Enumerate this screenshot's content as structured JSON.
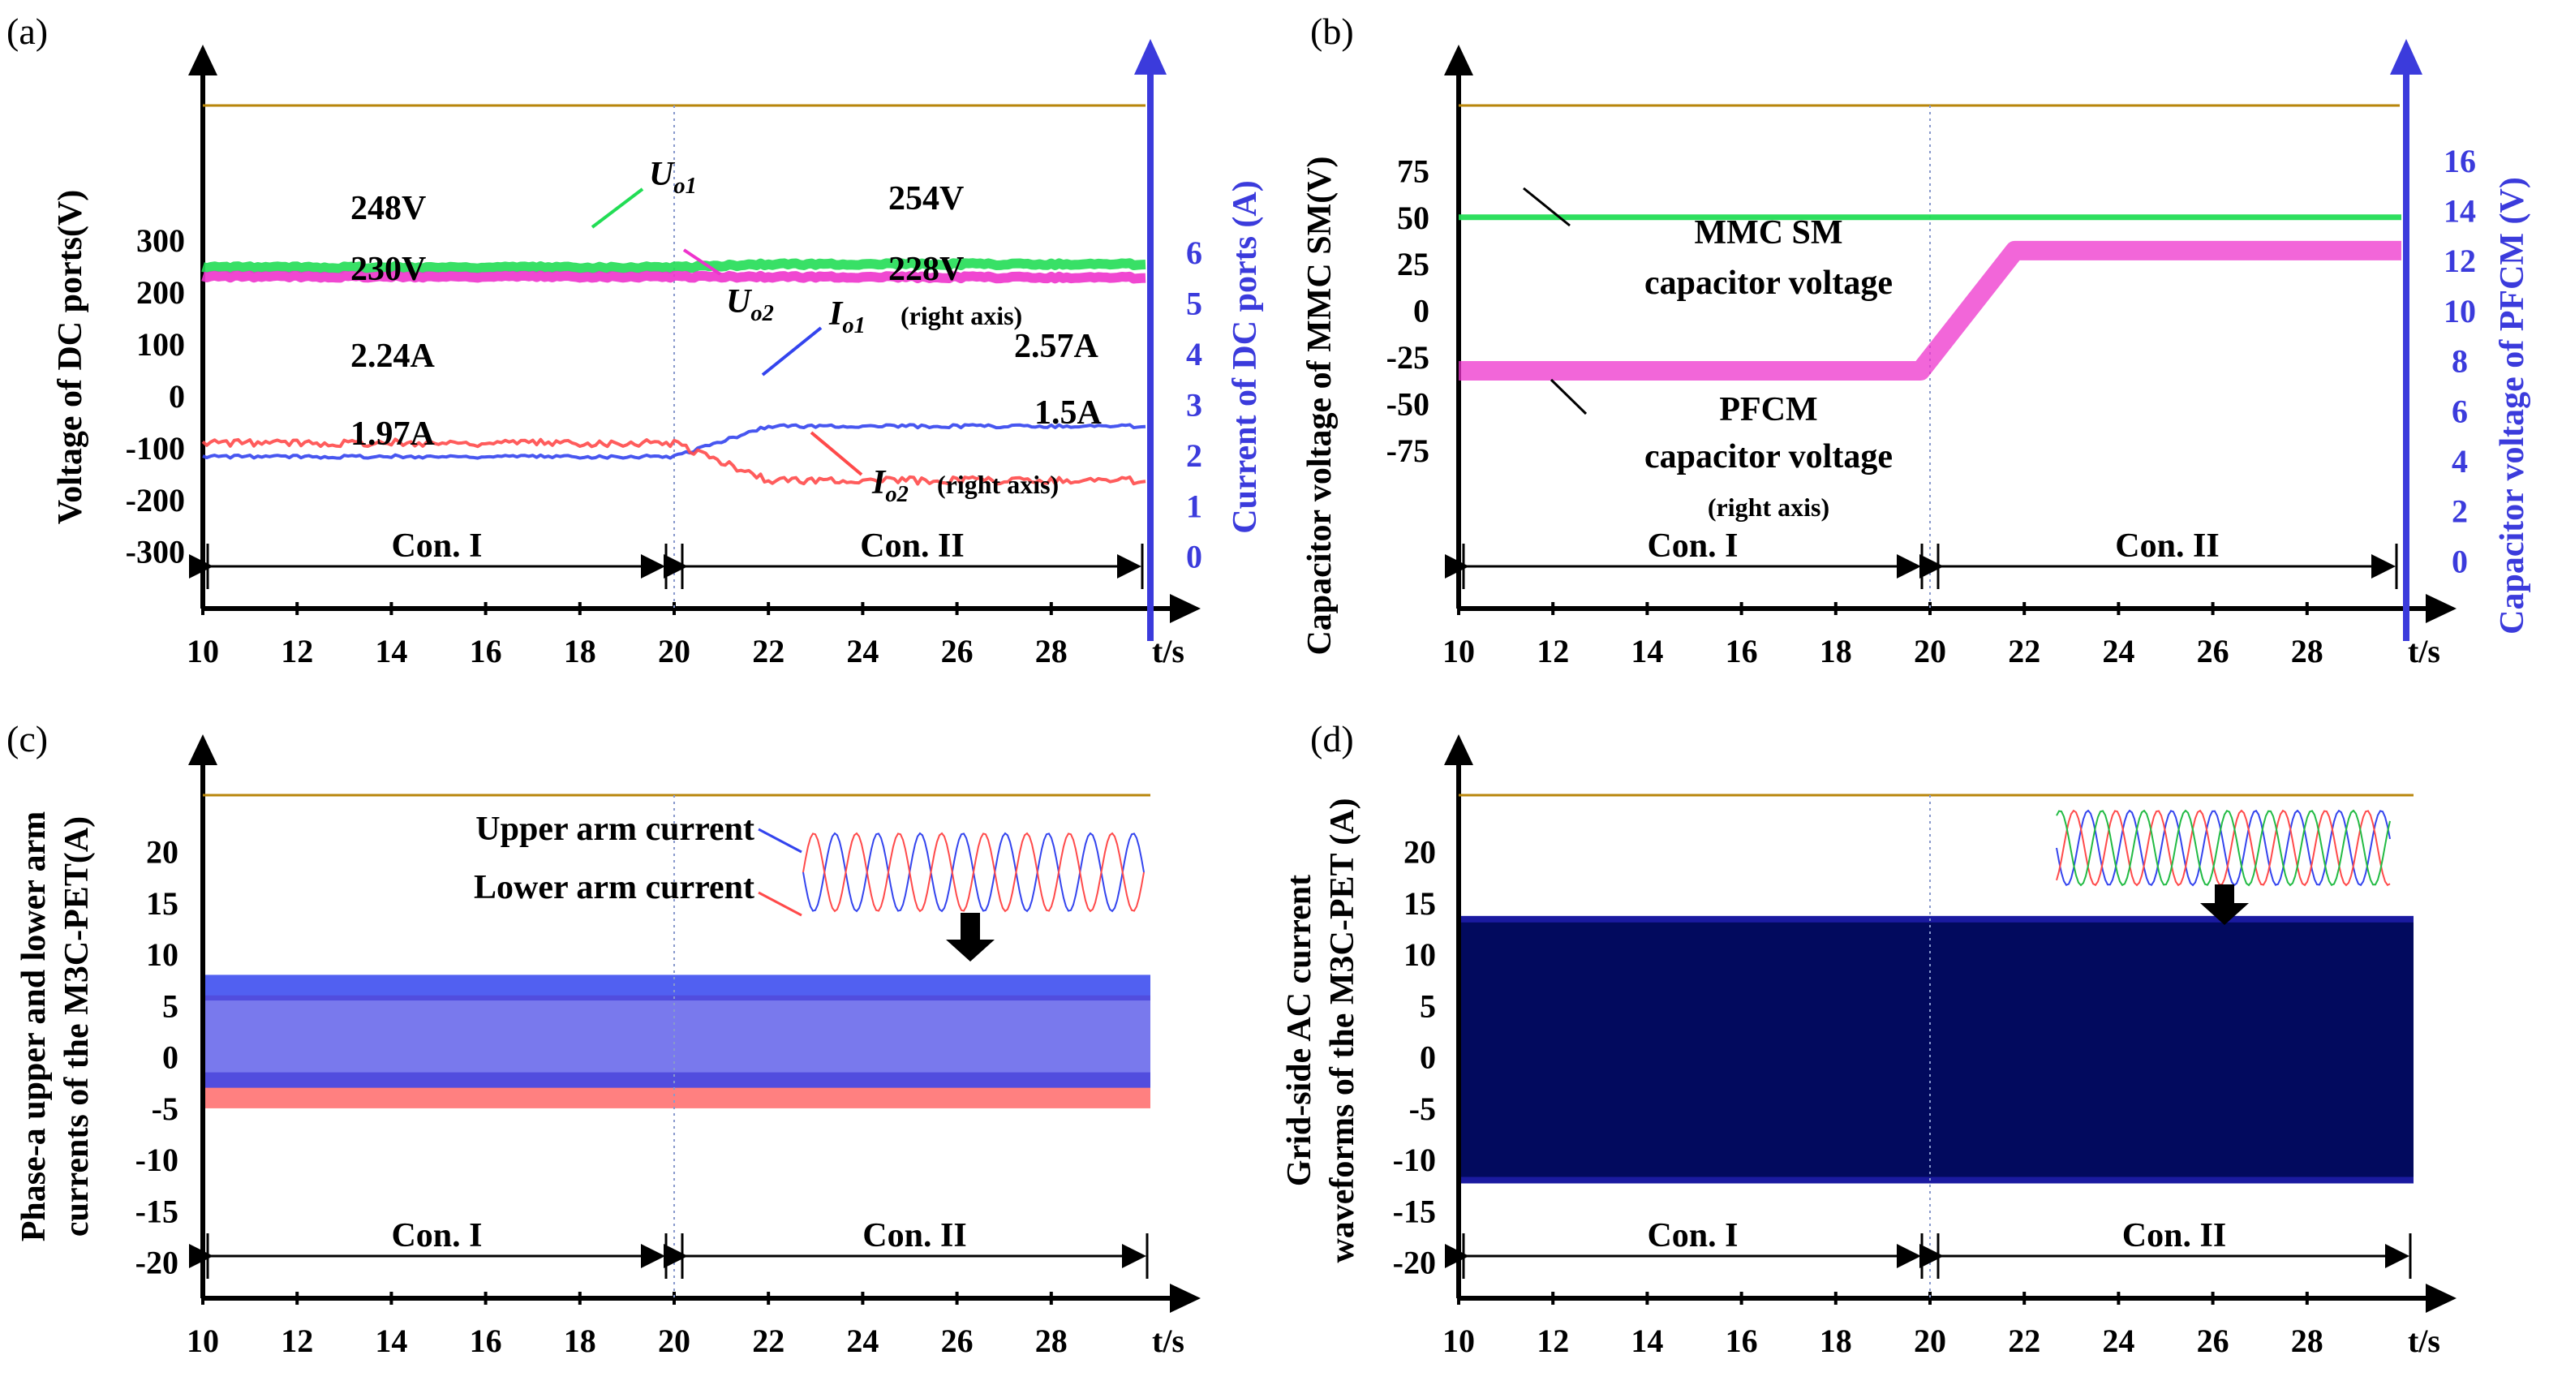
{
  "colors": {
    "green": "#22dd55",
    "magenta": "#ee33cc",
    "red": "#ff4a4a",
    "blue": "#3344ee",
    "axis_right": "#3b3bdc",
    "dark_blue": "#020a5e"
  },
  "chart_data": [
    {
      "type": "line",
      "panel": "(a)",
      "xlabel": "t/s",
      "x_ticks": [
        "10",
        "12",
        "14",
        "16",
        "18",
        "20",
        "22",
        "24",
        "26",
        "28"
      ],
      "xlim": [
        10,
        30
      ],
      "ylabel": "Voltage  of DC ports(V)",
      "y_ticks": [
        "300",
        "200",
        "100",
        "0",
        "-100",
        "-200",
        "-300"
      ],
      "ylim": [
        -410,
        560
      ],
      "y2label": "Current of DC ports (A)",
      "y2_ticks": [
        "6",
        "5",
        "4",
        "3",
        "2",
        "1",
        "0"
      ],
      "y2lim": [
        -1.03,
        8.9
      ],
      "segments": [
        "Con. I",
        "Con. II"
      ],
      "series": [
        {
          "name": "Uo1",
          "axis": "left",
          "color": "green",
          "x": [
            10,
            20,
            22,
            30
          ],
          "y": [
            248,
            248,
            254,
            254
          ]
        },
        {
          "name": "Uo2",
          "axis": "left",
          "color": "magenta",
          "x": [
            10,
            20,
            30
          ],
          "y": [
            230,
            230,
            228
          ]
        },
        {
          "name": "Io1",
          "axis": "right",
          "color": "blue",
          "x": [
            10,
            20,
            22,
            30
          ],
          "y": [
            1.97,
            1.97,
            2.57,
            2.57
          ]
        },
        {
          "name": "Io2",
          "axis": "right",
          "color": "red",
          "x": [
            10,
            20,
            22,
            30
          ],
          "y": [
            2.24,
            2.24,
            1.5,
            1.5
          ]
        }
      ],
      "annotations": {
        "uo1_label": "U",
        "uo1_sub": "o1",
        "uo2_label": "U",
        "uo2_sub": "o2",
        "io1_label": "I",
        "io1_sub": "o1",
        "io1_note": "(right axis)",
        "io2_label": "I",
        "io2_sub": "o2",
        "io2_note": "(right axis)",
        "v248": "248V",
        "v230": "230V",
        "v254": "254V",
        "v228": "228V",
        "a224": "2.24A",
        "a197": "1.97A",
        "a257": "2.57A",
        "a15": "1.5A"
      }
    },
    {
      "type": "line",
      "panel": "(b)",
      "xlabel": "t/s",
      "x_ticks": [
        "10",
        "12",
        "14",
        "16",
        "18",
        "20",
        "22",
        "24",
        "26",
        "28"
      ],
      "xlim": [
        10,
        30
      ],
      "ylabel": "Capacitor voltage of MMC SM(V)",
      "y_ticks": [
        "75",
        "50",
        "25",
        "0",
        "-25",
        "-50",
        "-75"
      ],
      "ylim": [
        -160,
        110
      ],
      "y2label": "Capacitor voltage of  PFCM (V)",
      "y2_ticks": [
        "16",
        "14",
        "12",
        "10",
        "8",
        "6",
        "4",
        "2",
        "0"
      ],
      "y2lim": [
        -1.9,
        18.2
      ],
      "segments": [
        "Con. I",
        "Con. II"
      ],
      "series": [
        {
          "name": "MMC SM capacitor voltage",
          "axis": "left",
          "color": "green",
          "x": [
            10,
            30
          ],
          "y": [
            50,
            50
          ]
        },
        {
          "name": "PFCM capacitor voltage",
          "axis": "right",
          "color": "magenta",
          "x": [
            10,
            19.8,
            21.8,
            30
          ],
          "y": [
            7.6,
            7.6,
            12.4,
            12.4
          ]
        }
      ],
      "annotations": {
        "mmc_line1": "MMC SM",
        "mmc_line2": "capacitor voltage",
        "pfcm_line1": "PFCM",
        "pfcm_line2": "capacitor voltage",
        "pfcm_line3": "(right axis)"
      }
    },
    {
      "type": "line",
      "panel": "(c)",
      "xlabel": "t/s",
      "x_ticks": [
        "10",
        "12",
        "14",
        "16",
        "18",
        "20",
        "22",
        "24",
        "26",
        "28"
      ],
      "xlim": [
        10,
        30
      ],
      "ylabel_line1": "Phase-a upper and lower arm",
      "ylabel_line2": "currents of the M3C-PET(A)",
      "y_ticks": [
        "20",
        "15",
        "10",
        "5",
        "0",
        "-5",
        "-10",
        "-15",
        "-20"
      ],
      "ylim": [
        -23.5,
        25.5
      ],
      "segments": [
        "Con. I",
        "Con. II"
      ],
      "series": [
        {
          "name": "Upper arm current",
          "color": "blue",
          "envelope": [
            -3,
            8
          ]
        },
        {
          "name": "Lower arm current",
          "color": "red",
          "envelope": [
            -5,
            6
          ]
        }
      ],
      "annotations": {
        "upper": "Upper arm current",
        "lower": "Lower arm current"
      }
    },
    {
      "type": "line",
      "panel": "(d)",
      "xlabel": "t/s",
      "x_ticks": [
        "10",
        "12",
        "14",
        "16",
        "18",
        "20",
        "22",
        "24",
        "26",
        "28"
      ],
      "xlim": [
        10,
        30
      ],
      "ylabel_line1": "Grid-side AC current",
      "ylabel_line2": "waveforms of the M3C-PET (A)",
      "y_ticks": [
        "20",
        "15",
        "10",
        "5",
        "0",
        "-5",
        "-10",
        "-15",
        "-20"
      ],
      "ylim": [
        -23.5,
        25.5
      ],
      "segments": [
        "Con. I",
        "Con. II"
      ],
      "series": [
        {
          "name": "Grid-side AC current (3 phases)",
          "color": "dark_blue",
          "envelope": [
            -12,
            13.5
          ]
        }
      ]
    }
  ]
}
